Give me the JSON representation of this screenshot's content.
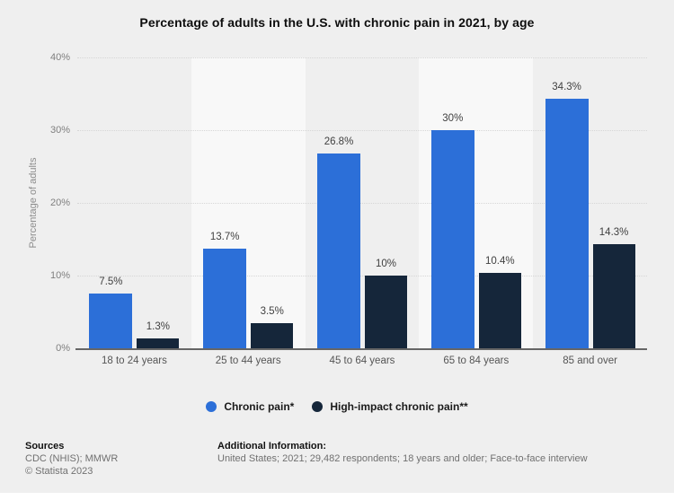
{
  "title": "Percentage of adults in the U.S. with chronic pain in 2021, by age",
  "chart_data": {
    "type": "bar",
    "categories": [
      "18 to 24 years",
      "25 to 44 years",
      "45 to 64 years",
      "65 to 84 years",
      "85 and over"
    ],
    "series": [
      {
        "name": "Chronic pain*",
        "color": "#2c6fd8",
        "values": [
          7.5,
          13.7,
          26.8,
          30,
          34.3
        ],
        "labels": [
          "7.5%",
          "13.7%",
          "26.8%",
          "30%",
          "34.3%"
        ]
      },
      {
        "name": "High-impact chronic pain**",
        "color": "#15263a",
        "values": [
          1.3,
          3.5,
          10,
          10.4,
          14.3
        ],
        "labels": [
          "1.3%",
          "3.5%",
          "10%",
          "10.4%",
          "14.3%"
        ]
      }
    ],
    "xlabel": "",
    "ylabel": "Percentage of adults",
    "ylim": [
      0,
      40
    ],
    "yticks": [
      {
        "value": 0,
        "label": "0%"
      },
      {
        "value": 10,
        "label": "10%"
      },
      {
        "value": 20,
        "label": "20%"
      },
      {
        "value": 30,
        "label": "30%"
      },
      {
        "value": 40,
        "label": "40%"
      }
    ],
    "grid": "horizontal-dotted",
    "legend_position": "bottom",
    "band_colors": {
      "odd": "transparent",
      "even": "#f8f8f8"
    }
  },
  "footer": {
    "sources_label": "Sources",
    "sources_line": "CDC (NHIS); MMWR",
    "copyright": "© Statista 2023",
    "additional_label": "Additional Information:",
    "additional_line": "United States; 2021; 29,482 respondents; 18 years and older; Face-to-face interview"
  },
  "colors": {
    "background": "#efefef",
    "gridline": "#d6d6d6",
    "axis_line": "#666666",
    "value_label": "#404040",
    "tick_label": "#7f7f7f"
  }
}
